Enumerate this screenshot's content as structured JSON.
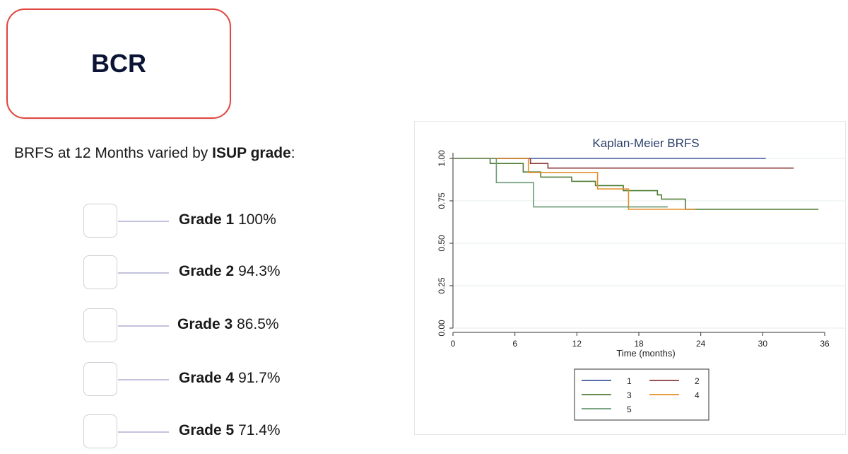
{
  "header": {
    "title": "BCR"
  },
  "intro": {
    "text_prefix": "BRFS at 12 Months varied by ",
    "text_bold": "ISUP grade",
    "text_suffix": ":"
  },
  "grades": [
    {
      "label": "Grade 1",
      "value": "100%"
    },
    {
      "label": "Grade 2",
      "value": "94.3%"
    },
    {
      "label": "Grade 3",
      "value": "86.5%"
    },
    {
      "label": "Grade 4",
      "value": "91.7%"
    },
    {
      "label": "Grade 5",
      "value": "71.4%"
    }
  ],
  "chart_data": {
    "type": "line",
    "title": "Kaplan-Meier BRFS",
    "xlabel": "Time (months)",
    "ylabel": "",
    "xlim": [
      0,
      36
    ],
    "ylim": [
      0,
      1
    ],
    "x_ticks": [
      0,
      6,
      12,
      18,
      24,
      30,
      36
    ],
    "y_ticks": [
      "0.00",
      "0.25",
      "0.50",
      "0.75",
      "1.00"
    ],
    "legend_position": "bottom",
    "series": [
      {
        "name": "1",
        "color": "#3e5a9c",
        "points": [
          [
            0,
            1.0
          ],
          [
            30.3,
            1.0
          ]
        ]
      },
      {
        "name": "2",
        "color": "#8e3a3a",
        "points": [
          [
            0,
            1.0
          ],
          [
            7.5,
            1.0
          ],
          [
            7.5,
            0.97
          ],
          [
            9.2,
            0.97
          ],
          [
            9.2,
            0.943
          ],
          [
            33.0,
            0.943
          ]
        ]
      },
      {
        "name": "3",
        "color": "#4e7d34",
        "points": [
          [
            0,
            1.0
          ],
          [
            3.6,
            1.0
          ],
          [
            3.6,
            0.97
          ],
          [
            6.8,
            0.97
          ],
          [
            6.8,
            0.92
          ],
          [
            8.5,
            0.92
          ],
          [
            8.5,
            0.89
          ],
          [
            11.5,
            0.89
          ],
          [
            11.5,
            0.865
          ],
          [
            13.8,
            0.865
          ],
          [
            13.8,
            0.84
          ],
          [
            16.5,
            0.84
          ],
          [
            16.5,
            0.81
          ],
          [
            19.8,
            0.81
          ],
          [
            19.8,
            0.785
          ],
          [
            20.2,
            0.785
          ],
          [
            20.2,
            0.76
          ],
          [
            22.5,
            0.76
          ],
          [
            22.5,
            0.7
          ],
          [
            35.4,
            0.7
          ]
        ]
      },
      {
        "name": "4",
        "color": "#e38e2a",
        "points": [
          [
            0,
            1.0
          ],
          [
            7.3,
            1.0
          ],
          [
            7.3,
            0.917
          ],
          [
            14.0,
            0.917
          ],
          [
            14.0,
            0.82
          ],
          [
            17.0,
            0.82
          ],
          [
            17.0,
            0.7
          ],
          [
            23.5,
            0.7
          ]
        ]
      },
      {
        "name": "5",
        "color": "#6b9a74",
        "points": [
          [
            0,
            1.0
          ],
          [
            4.2,
            1.0
          ],
          [
            4.2,
            0.857
          ],
          [
            7.8,
            0.857
          ],
          [
            7.8,
            0.714
          ],
          [
            20.8,
            0.714
          ]
        ]
      }
    ]
  }
}
